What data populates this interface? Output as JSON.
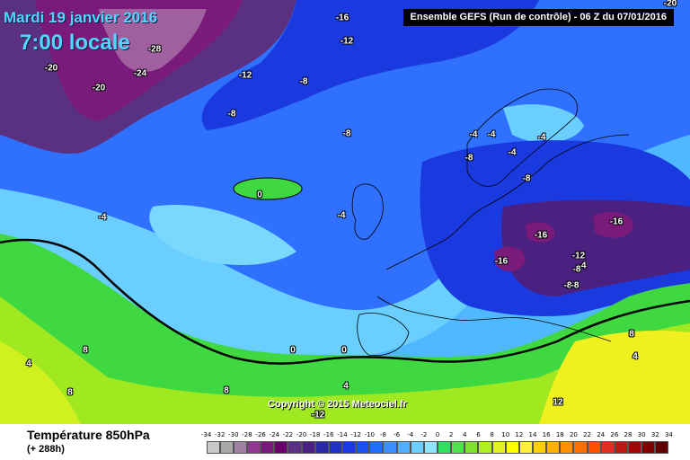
{
  "header": {
    "date": "Mardi 19 janvier 2016",
    "time": "7:00 locale",
    "model": "Ensemble GEFS  (Run de contrôle)  - 06 Z du 07/01/2016"
  },
  "copyright": "Copyright © 2015 Meteociel.fr",
  "footer": {
    "variable": "Température 850hPa",
    "lead_time": "(+ 288h)"
  },
  "legend": {
    "values": [
      "-34",
      "-32",
      "-30",
      "-28",
      "-26",
      "-24",
      "-22",
      "-20",
      "-18",
      "-16",
      "-14",
      "-12",
      "-10",
      "-8",
      "-6",
      "-4",
      "-2",
      "0",
      "2",
      "4",
      "6",
      "8",
      "10",
      "12",
      "14",
      "16",
      "18",
      "20",
      "22",
      "24",
      "26",
      "28",
      "30",
      "32",
      "34"
    ],
    "colors": [
      "#c8c8c8",
      "#a8a8a8",
      "#a080a0",
      "#903890",
      "#7a1a7a",
      "#6a006a",
      "#5a3080",
      "#4a2080",
      "#2a2aa8",
      "#2030c8",
      "#1a3ae0",
      "#1a50f0",
      "#2070ff",
      "#3a90ff",
      "#50b0ff",
      "#6acfff",
      "#90e4ff",
      "#30e060",
      "#50e050",
      "#80e030",
      "#b0f020",
      "#e0f020",
      "#ffff00",
      "#fff040",
      "#ffd000",
      "#ffb000",
      "#ff9000",
      "#ff7000",
      "#ff5000",
      "#e03020",
      "#c01818",
      "#a00808",
      "#800000",
      "#600000"
    ]
  },
  "contour_labels": [
    {
      "text": "-16"
    },
    {
      "text": "-12"
    },
    {
      "text": "-28"
    },
    {
      "text": "-24"
    },
    {
      "text": "-20"
    },
    {
      "text": "-20"
    },
    {
      "text": "-12"
    },
    {
      "text": "-8"
    },
    {
      "text": "-8"
    },
    {
      "text": "-8"
    },
    {
      "text": "-4"
    },
    {
      "text": "-4"
    },
    {
      "text": "-4"
    },
    {
      "text": "-4"
    },
    {
      "text": "-8"
    },
    {
      "text": "-4"
    },
    {
      "text": "-8"
    },
    {
      "text": "0"
    },
    {
      "text": "-4"
    },
    {
      "text": "-4"
    },
    {
      "text": "-16"
    },
    {
      "text": "-16"
    },
    {
      "text": "-12"
    },
    {
      "text": "-16"
    },
    {
      "text": "-8"
    },
    {
      "text": "-8"
    },
    {
      "text": "-8"
    },
    {
      "text": "0"
    },
    {
      "text": "0"
    },
    {
      "text": "4"
    },
    {
      "text": "8"
    },
    {
      "text": "8"
    },
    {
      "text": "4"
    },
    {
      "text": "8"
    },
    {
      "text": "8"
    },
    {
      "text": "-12"
    },
    {
      "text": "12"
    },
    {
      "text": "8"
    },
    {
      "text": "4"
    },
    {
      "text": "-20"
    }
  ]
}
